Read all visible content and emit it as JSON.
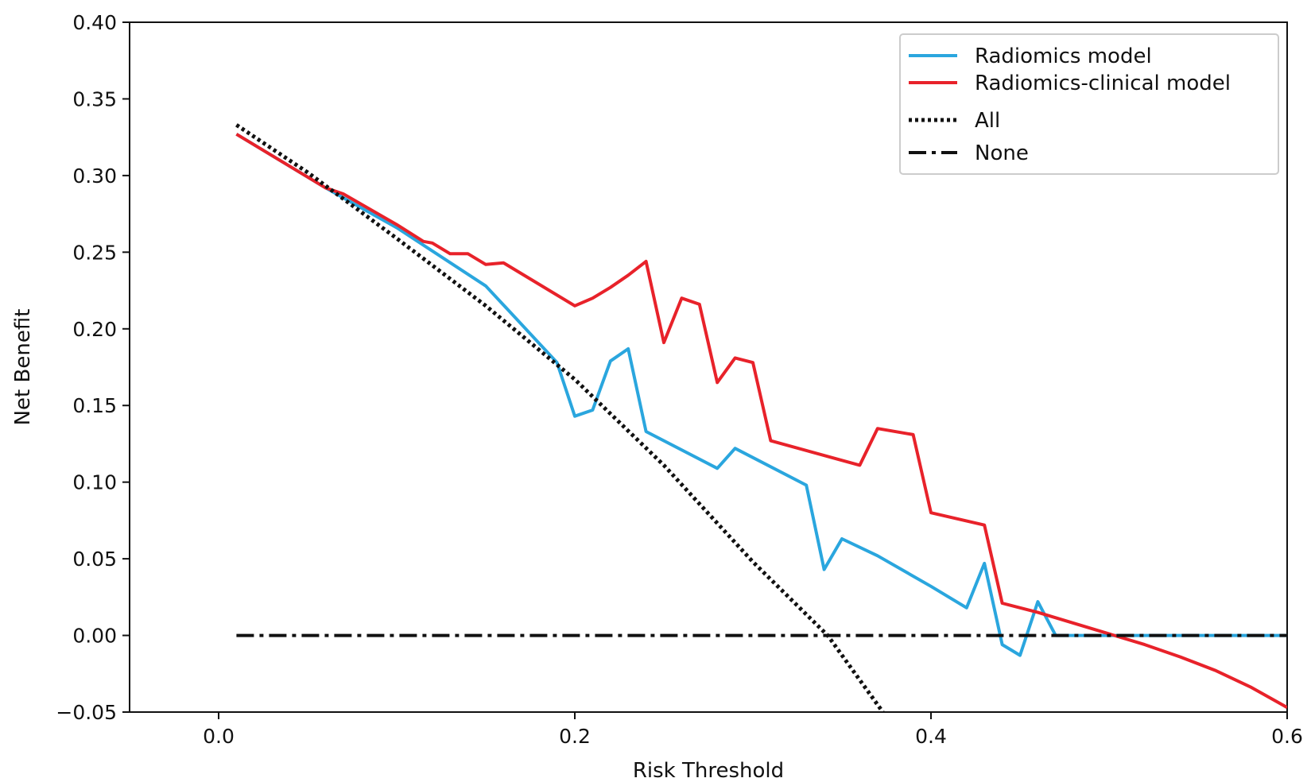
{
  "chart_data": {
    "type": "line",
    "title": "",
    "xlabel": "Risk Threshold",
    "ylabel": "Net Benefit",
    "xlim": [
      -0.05,
      0.6
    ],
    "ylim": [
      -0.05,
      0.4
    ],
    "xticks": [
      0.0,
      0.2,
      0.4,
      0.6
    ],
    "xtick_labels": [
      "0.0",
      "0.2",
      "0.4",
      "0.6"
    ],
    "yticks": [
      -0.05,
      0.0,
      0.05,
      0.1,
      0.15,
      0.2,
      0.25,
      0.3,
      0.35,
      0.4
    ],
    "ytick_labels": [
      "−0.05",
      "0.00",
      "0.05",
      "0.10",
      "0.15",
      "0.20",
      "0.25",
      "0.30",
      "0.35",
      "0.40"
    ],
    "grid": false,
    "legend_position": "top-right",
    "series": [
      {
        "name": "Radiomics model",
        "color": "#2aa6de",
        "style": "solid",
        "points": [
          [
            0.01,
            0.327
          ],
          [
            0.06,
            0.292
          ],
          [
            0.1,
            0.266
          ],
          [
            0.15,
            0.228
          ],
          [
            0.19,
            0.178
          ],
          [
            0.2,
            0.143
          ],
          [
            0.21,
            0.147
          ],
          [
            0.22,
            0.179
          ],
          [
            0.23,
            0.187
          ],
          [
            0.24,
            0.133
          ],
          [
            0.28,
            0.109
          ],
          [
            0.29,
            0.122
          ],
          [
            0.33,
            0.098
          ],
          [
            0.34,
            0.043
          ],
          [
            0.35,
            0.063
          ],
          [
            0.37,
            0.052
          ],
          [
            0.4,
            0.032
          ],
          [
            0.42,
            0.018
          ],
          [
            0.43,
            0.047
          ],
          [
            0.44,
            -0.006
          ],
          [
            0.45,
            -0.013
          ],
          [
            0.46,
            0.022
          ],
          [
            0.47,
            0.0
          ],
          [
            0.6,
            0.0
          ]
        ]
      },
      {
        "name": "Radiomics-clinical model",
        "color": "#e8222a",
        "style": "solid",
        "points": [
          [
            0.01,
            0.327
          ],
          [
            0.06,
            0.292
          ],
          [
            0.07,
            0.288
          ],
          [
            0.1,
            0.268
          ],
          [
            0.115,
            0.257
          ],
          [
            0.12,
            0.256
          ],
          [
            0.13,
            0.249
          ],
          [
            0.14,
            0.249
          ],
          [
            0.15,
            0.242
          ],
          [
            0.16,
            0.243
          ],
          [
            0.2,
            0.215
          ],
          [
            0.21,
            0.22
          ],
          [
            0.22,
            0.227
          ],
          [
            0.23,
            0.235
          ],
          [
            0.24,
            0.244
          ],
          [
            0.25,
            0.191
          ],
          [
            0.26,
            0.22
          ],
          [
            0.27,
            0.216
          ],
          [
            0.28,
            0.165
          ],
          [
            0.29,
            0.181
          ],
          [
            0.3,
            0.178
          ],
          [
            0.31,
            0.127
          ],
          [
            0.36,
            0.111
          ],
          [
            0.37,
            0.135
          ],
          [
            0.39,
            0.131
          ],
          [
            0.4,
            0.08
          ],
          [
            0.43,
            0.072
          ],
          [
            0.44,
            0.021
          ],
          [
            0.46,
            0.015
          ],
          [
            0.48,
            0.008
          ],
          [
            0.5,
            0.001
          ],
          [
            0.52,
            -0.006
          ],
          [
            0.54,
            -0.014
          ],
          [
            0.56,
            -0.023
          ],
          [
            0.58,
            -0.034
          ],
          [
            0.6,
            -0.047
          ]
        ]
      },
      {
        "name": "All",
        "color": "#111111",
        "style": "dotted",
        "points": [
          [
            0.01,
            0.333
          ],
          [
            0.05,
            0.302
          ],
          [
            0.1,
            0.259
          ],
          [
            0.15,
            0.215
          ],
          [
            0.2,
            0.167
          ],
          [
            0.25,
            0.111
          ],
          [
            0.3,
            0.048
          ],
          [
            0.342,
            0.0
          ],
          [
            0.373,
            -0.05
          ]
        ]
      },
      {
        "name": "None",
        "color": "#111111",
        "style": "dashdot",
        "points": [
          [
            0.01,
            0.0
          ],
          [
            0.6,
            0.0
          ]
        ]
      }
    ]
  }
}
